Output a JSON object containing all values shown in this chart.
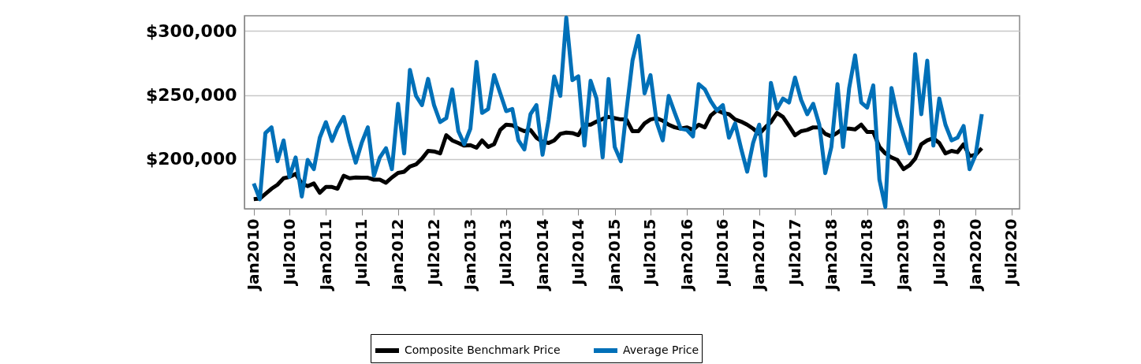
{
  "chart_data": {
    "type": "line",
    "xlim": [
      "2009-11-15",
      "2020-08-10"
    ],
    "ylim": [
      161000,
      312000
    ],
    "x": [
      "2010-01",
      "2010-02",
      "2010-03",
      "2010-04",
      "2010-05",
      "2010-06",
      "2010-07",
      "2010-08",
      "2010-09",
      "2010-10",
      "2010-11",
      "2010-12",
      "2011-01",
      "2011-02",
      "2011-03",
      "2011-04",
      "2011-05",
      "2011-06",
      "2011-07",
      "2011-08",
      "2011-09",
      "2011-10",
      "2011-11",
      "2011-12",
      "2012-01",
      "2012-02",
      "2012-03",
      "2012-04",
      "2012-05",
      "2012-06",
      "2012-07",
      "2012-08",
      "2012-09",
      "2012-10",
      "2012-11",
      "2012-12",
      "2013-01",
      "2013-02",
      "2013-03",
      "2013-04",
      "2013-05",
      "2013-06",
      "2013-07",
      "2013-08",
      "2013-09",
      "2013-10",
      "2013-11",
      "2013-12",
      "2014-01",
      "2014-02",
      "2014-03",
      "2014-04",
      "2014-05",
      "2014-06",
      "2014-07",
      "2014-08",
      "2014-09",
      "2014-10",
      "2014-11",
      "2014-12",
      "2015-01",
      "2015-02",
      "2015-03",
      "2015-04",
      "2015-05",
      "2015-06",
      "2015-07",
      "2015-08",
      "2015-09",
      "2015-10",
      "2015-11",
      "2015-12",
      "2016-01",
      "2016-02",
      "2016-03",
      "2016-04",
      "2016-05",
      "2016-06",
      "2016-07",
      "2016-08",
      "2016-09",
      "2016-10",
      "2016-11",
      "2016-12",
      "2017-01",
      "2017-02",
      "2017-03",
      "2017-04",
      "2017-05",
      "2017-06",
      "2017-07",
      "2017-08",
      "2017-09",
      "2017-10",
      "2017-11",
      "2017-12",
      "2018-01",
      "2018-02",
      "2018-03",
      "2018-04",
      "2018-05",
      "2018-06",
      "2018-07",
      "2018-08",
      "2018-09",
      "2018-10",
      "2018-11",
      "2018-12",
      "2019-01",
      "2019-02",
      "2019-03",
      "2019-04",
      "2019-05",
      "2019-06",
      "2019-07",
      "2019-08",
      "2019-09",
      "2019-10",
      "2019-11",
      "2019-12",
      "2020-01",
      "2020-02"
    ],
    "series": [
      {
        "name": "Composite Benchmark Price",
        "color": "#000000",
        "values": [
          168500,
          169000,
          172600,
          176700,
          179800,
          184900,
          185900,
          188300,
          180800,
          178700,
          180800,
          173600,
          178100,
          178100,
          176700,
          186900,
          184900,
          185500,
          185300,
          185300,
          183800,
          183800,
          181400,
          185500,
          189000,
          190000,
          194100,
          195700,
          200200,
          206300,
          205900,
          204300,
          218600,
          214500,
          212500,
          210400,
          210800,
          208800,
          214500,
          209400,
          211500,
          222700,
          226800,
          226400,
          223700,
          221700,
          222700,
          216600,
          213500,
          212500,
          214500,
          219600,
          220600,
          220200,
          218600,
          226800,
          226800,
          229200,
          231300,
          232900,
          231900,
          230900,
          230900,
          221700,
          221700,
          227800,
          230900,
          231900,
          229900,
          226800,
          224700,
          223700,
          224700,
          222700,
          226800,
          224700,
          233900,
          238000,
          236000,
          235000,
          230900,
          229200,
          226800,
          223700,
          219600,
          224700,
          228800,
          236000,
          232900,
          225800,
          218600,
          221700,
          222700,
          224700,
          224700,
          219600,
          217600,
          220600,
          223700,
          223700,
          223100,
          226800,
          221100,
          221100,
          209400,
          204300,
          201200,
          199200,
          192000,
          195100,
          200200,
          211500,
          214500,
          216200,
          212500,
          204300,
          206300,
          205300,
          211500,
          202200,
          203300,
          208400
        ]
      },
      {
        "name": "Average Price",
        "color": "#0070b8",
        "values": [
          180800,
          168500,
          220200,
          224700,
          198200,
          214500,
          185900,
          201200,
          170600,
          199200,
          192000,
          216600,
          228800,
          214100,
          224700,
          232900,
          213500,
          197100,
          212500,
          224700,
          186900,
          201200,
          208400,
          192000,
          243100,
          204300,
          269700,
          249300,
          242100,
          262600,
          242100,
          228800,
          231900,
          254400,
          221700,
          211500,
          223700,
          275900,
          236000,
          239100,
          265600,
          251300,
          237400,
          239100,
          214500,
          207400,
          235000,
          242100,
          203300,
          230900,
          264600,
          249300,
          310600,
          261600,
          264600,
          210400,
          261100,
          247200,
          201200,
          262600,
          209400,
          198200,
          237000,
          276900,
          296300,
          251300,
          265600,
          228800,
          214500,
          249300,
          236000,
          223700,
          222700,
          217600,
          258500,
          254400,
          245200,
          238000,
          242100,
          216600,
          227800,
          208400,
          190000,
          212500,
          226800,
          186900,
          259500,
          239100,
          247200,
          244200,
          263600,
          246200,
          235000,
          243100,
          226800,
          188900,
          209400,
          258500,
          209400,
          255400,
          281000,
          244200,
          240100,
          257500,
          183800,
          162400,
          255400,
          234000,
          218600,
          204300,
          282000,
          235000,
          276900,
          210400,
          247200,
          226800,
          214500,
          216600,
          225800,
          192000,
          203300,
          235000
        ]
      }
    ],
    "yticks": [
      {
        "value": 200000,
        "label": "$200,000"
      },
      {
        "value": 250000,
        "label": "$250,000"
      },
      {
        "value": 300000,
        "label": "$300,000"
      }
    ],
    "xticks": [
      {
        "value": "2010-01",
        "label": "Jan2010"
      },
      {
        "value": "2010-07",
        "label": "Jul2010"
      },
      {
        "value": "2011-01",
        "label": "Jan2011"
      },
      {
        "value": "2011-07",
        "label": "Jul2011"
      },
      {
        "value": "2012-01",
        "label": "Jan2012"
      },
      {
        "value": "2012-07",
        "label": "Jul2012"
      },
      {
        "value": "2013-01",
        "label": "Jan2013"
      },
      {
        "value": "2013-07",
        "label": "Jul2013"
      },
      {
        "value": "2014-01",
        "label": "Jan2014"
      },
      {
        "value": "2014-07",
        "label": "Jul2014"
      },
      {
        "value": "2015-01",
        "label": "Jan2015"
      },
      {
        "value": "2015-07",
        "label": "Jul2015"
      },
      {
        "value": "2016-01",
        "label": "Jan2016"
      },
      {
        "value": "2016-07",
        "label": "Jul2016"
      },
      {
        "value": "2017-01",
        "label": "Jan2017"
      },
      {
        "value": "2017-07",
        "label": "Jul2017"
      },
      {
        "value": "2018-01",
        "label": "Jan2018"
      },
      {
        "value": "2018-07",
        "label": "Jul2018"
      },
      {
        "value": "2019-01",
        "label": "Jan2019"
      },
      {
        "value": "2019-07",
        "label": "Jul2019"
      },
      {
        "value": "2020-01",
        "label": "Jan2020"
      },
      {
        "value": "2020-07",
        "label": "Jul2020"
      }
    ],
    "grid": "y",
    "legend": "bottom",
    "marker": "none",
    "line_style": "solid"
  }
}
